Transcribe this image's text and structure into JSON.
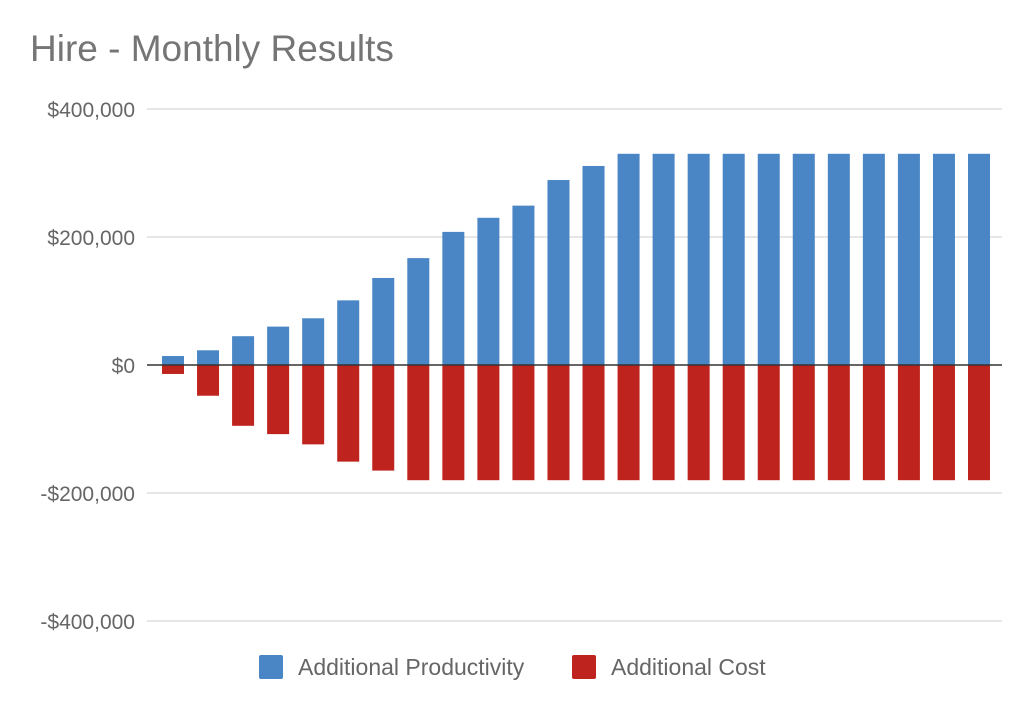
{
  "chart_data": {
    "type": "bar",
    "stacking": "stacked",
    "title": "Hire - Monthly Results",
    "xlabel": "",
    "ylabel": "",
    "ylim": [
      -400000,
      400000
    ],
    "yticks": [
      400000,
      200000,
      0,
      -200000,
      -400000
    ],
    "ytick_labels": [
      "$400,000",
      "$200,000",
      "$0",
      "-$200,000",
      "-$400,000"
    ],
    "grid": true,
    "legend_position": "bottom",
    "categories": [
      "",
      "",
      "",
      "",
      "",
      "",
      "",
      "",
      "",
      "",
      "",
      "",
      "",
      "",
      "",
      "",
      "",
      "",
      "",
      "",
      "",
      "",
      "",
      ""
    ],
    "series": [
      {
        "name": "Additional Productivity",
        "color": "#4a86c5",
        "values": [
          14000,
          23000,
          45000,
          60000,
          73000,
          101000,
          136000,
          167000,
          208000,
          230000,
          249000,
          289000,
          311000,
          330000,
          330000,
          330000,
          330000,
          330000,
          330000,
          330000,
          330000,
          330000,
          330000,
          330000
        ]
      },
      {
        "name": "Additional Cost",
        "color": "#bf231d",
        "values": [
          -14000,
          -48000,
          -95000,
          -108000,
          -124000,
          -151000,
          -165000,
          -180000,
          -180000,
          -180000,
          -180000,
          -180000,
          -180000,
          -180000,
          -180000,
          -180000,
          -180000,
          -180000,
          -180000,
          -180000,
          -180000,
          -180000,
          -180000,
          -180000
        ]
      }
    ]
  }
}
